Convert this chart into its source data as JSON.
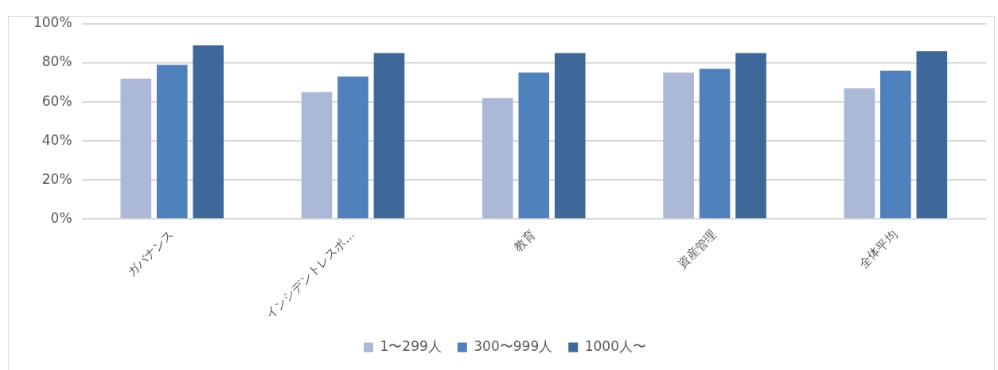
{
  "chart_data": {
    "type": "bar",
    "categories": [
      "ガバナンス",
      "インシデントレスポ…",
      "教育",
      "資産管理",
      "全体平均"
    ],
    "series": [
      {
        "name": "1〜299人",
        "color": "#abb9d7",
        "values": [
          72,
          65,
          62,
          75,
          67
        ]
      },
      {
        "name": "300〜999人",
        "color": "#4f81bd",
        "values": [
          79,
          73,
          75,
          77,
          76
        ]
      },
      {
        "name": "1000人〜",
        "color": "#3e6899",
        "values": [
          89,
          85,
          85,
          85,
          86
        ]
      }
    ],
    "ylim": [
      0,
      100
    ],
    "yticks": [
      {
        "value": 0,
        "label": "0%"
      },
      {
        "value": 20,
        "label": "20%"
      },
      {
        "value": 40,
        "label": "40%"
      },
      {
        "value": 60,
        "label": "60%"
      },
      {
        "value": 80,
        "label": "80%"
      },
      {
        "value": 100,
        "label": "100%"
      }
    ],
    "grid": "y",
    "legend": "bottom"
  }
}
